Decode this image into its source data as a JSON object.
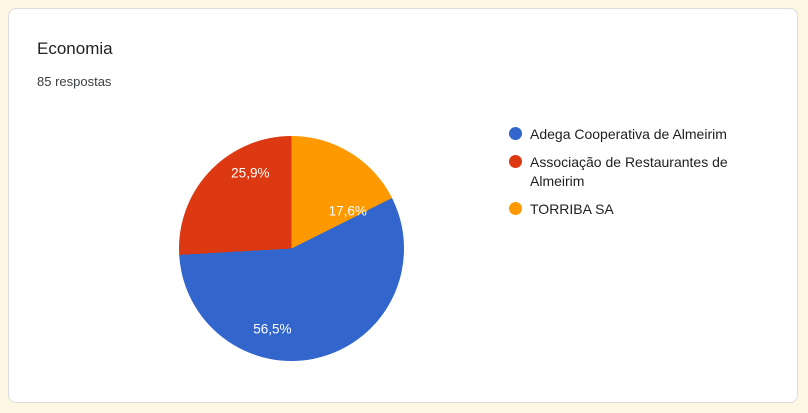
{
  "card": {
    "title": "Economia",
    "subtitle": "85 respostas"
  },
  "chart_data": {
    "type": "pie",
    "title": "Economia",
    "subtitle": "85 respostas",
    "labels": [
      "Adega Cooperativa de Almeirim",
      "Associação de Restaurantes de Almeirim",
      "TORRIBA SA"
    ],
    "values": [
      56.5,
      25.9,
      17.6
    ],
    "display_values": [
      "56,5%",
      "25,9%",
      "17,6%"
    ],
    "colors": [
      "#3366cc",
      "#dc3912",
      "#ff9900"
    ],
    "legend_position": "right",
    "rotation_deg": 63.36,
    "label_positions_frac": [
      [
        0.415,
        0.857
      ],
      [
        0.317,
        0.165
      ],
      [
        0.75,
        0.335
      ]
    ]
  },
  "colors": {
    "page_background": "#fdf7e3",
    "card_background": "#ffffff",
    "card_border": "#dadce0",
    "slice_label_text": "#ffffff"
  }
}
